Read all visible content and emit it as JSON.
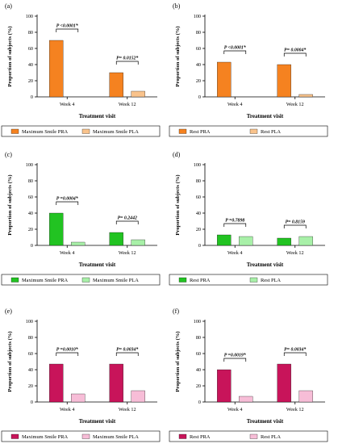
{
  "chart_data": [
    {
      "type": "bar",
      "panel": "(a)",
      "categories": [
        "Week 4",
        "Week 12"
      ],
      "series": [
        {
          "name": "Maximum Smile PRA",
          "values": [
            70,
            30
          ],
          "color": "#F58220"
        },
        {
          "name": "Maximum Smile PLA",
          "values": [
            0,
            7
          ],
          "color": "#F9C38C"
        }
      ],
      "pvalues": [
        "P <0.0001*",
        "P= 0.0152*"
      ],
      "ylabel": "Proportion of subjects (%)",
      "xlabel": "Treatment visit",
      "yticks": [
        "0",
        "20",
        "40",
        "60",
        "80",
        "100"
      ],
      "ylim": [
        0,
        100
      ],
      "legend": "bottom"
    },
    {
      "type": "bar",
      "panel": "(b)",
      "categories": [
        "Week 4",
        "Week 12"
      ],
      "series": [
        {
          "name": "Rest PRA",
          "values": [
            43,
            40
          ],
          "color": "#F58220"
        },
        {
          "name": "Rest PLA",
          "values": [
            0,
            3
          ],
          "color": "#F9C38C"
        }
      ],
      "pvalues": [
        "P <0.0001*",
        "P= 0.0004*"
      ],
      "ylabel": "Proportion of subjects (%)",
      "xlabel": "Treatment visit",
      "yticks": [
        "0",
        "20",
        "40",
        "60",
        "80",
        "100"
      ],
      "ylim": [
        0,
        100
      ],
      "legend": "bottom"
    },
    {
      "type": "bar",
      "panel": "(c)",
      "categories": [
        "Week 4",
        "Week 12"
      ],
      "series": [
        {
          "name": "Maximum Smile PRA",
          "values": [
            40,
            16
          ],
          "color": "#22C322"
        },
        {
          "name": "Maximum Smile PLA",
          "values": [
            4,
            7
          ],
          "color": "#A8F0A8"
        }
      ],
      "pvalues": [
        "P =0.0004*",
        "P= 0.2442"
      ],
      "ylabel": "Proportion of subjects (%)",
      "xlabel": "Treatment visit",
      "yticks": [
        "0",
        "20",
        "40",
        "60",
        "80",
        "100"
      ],
      "ylim": [
        0,
        100
      ],
      "legend": "bottom"
    },
    {
      "type": "bar",
      "panel": "(d)",
      "categories": [
        "Week 4",
        "Week 12"
      ],
      "series": [
        {
          "name": "Rest PRA",
          "values": [
            13,
            9
          ],
          "color": "#22C322"
        },
        {
          "name": "Rest PLA",
          "values": [
            11,
            11
          ],
          "color": "#A8F0A8"
        }
      ],
      "pvalues": [
        "P =0.7898",
        "P= 0.8159"
      ],
      "ylabel": "Proportion of subjects (%)",
      "xlabel": "Treatment visit",
      "yticks": [
        "0",
        "20",
        "40",
        "60",
        "80",
        "100"
      ],
      "ylim": [
        0,
        100
      ],
      "legend": "bottom"
    },
    {
      "type": "bar",
      "panel": "(e)",
      "categories": [
        "Week 4",
        "Week 12"
      ],
      "series": [
        {
          "name": "Maximum Smile PRA",
          "values": [
            47,
            47
          ],
          "color": "#C8145A"
        },
        {
          "name": "Maximum Smile PLA",
          "values": [
            10,
            14
          ],
          "color": "#F7BDD7"
        }
      ],
      "pvalues": [
        "P =0.0010*",
        "P= 0.0034*"
      ],
      "ylabel": "Proportion of subjects (%)",
      "xlabel": "Treatment visit",
      "yticks": [
        "0",
        "20",
        "40",
        "60",
        "80",
        "100"
      ],
      "ylim": [
        0,
        100
      ],
      "legend": "bottom"
    },
    {
      "type": "bar",
      "panel": "(f)",
      "categories": [
        "Week 4",
        "Week 12"
      ],
      "series": [
        {
          "name": "Rest PRA",
          "values": [
            40,
            47
          ],
          "color": "#C8145A"
        },
        {
          "name": "Rest PLA",
          "values": [
            7,
            14
          ],
          "color": "#F7BDD7"
        }
      ],
      "pvalues": [
        "P =0.0019*",
        "P= 0.0034*"
      ],
      "ylabel": "Proportion of subjects (%)",
      "xlabel": "Treatment visit",
      "yticks": [
        "0",
        "20",
        "40",
        "60",
        "80",
        "100"
      ],
      "ylim": [
        0,
        100
      ],
      "legend": "bottom"
    }
  ]
}
